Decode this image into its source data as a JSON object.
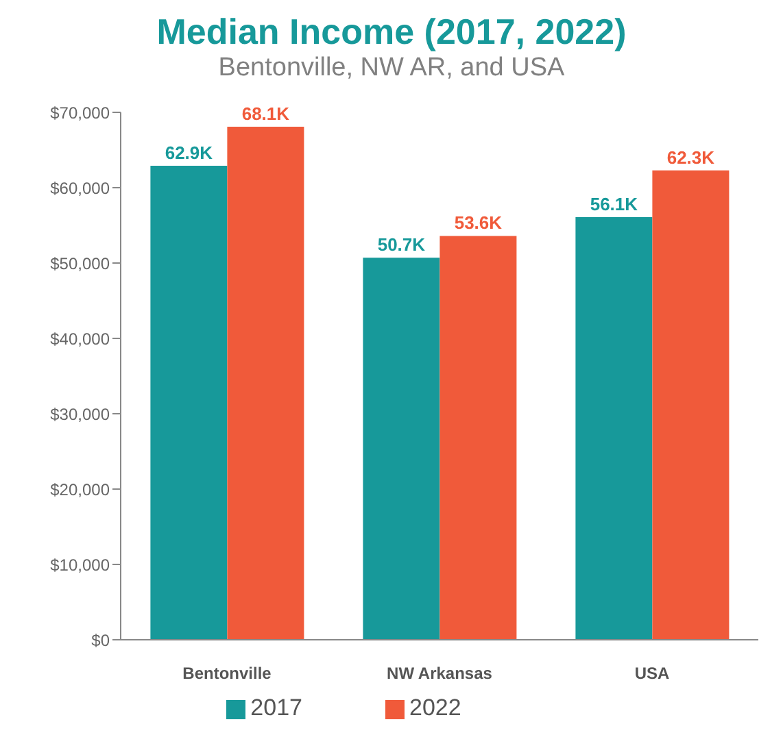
{
  "chart_data": {
    "type": "bar",
    "title": "Median Income (2017, 2022)",
    "subtitle": "Bentonville, NW AR, and USA",
    "categories": [
      "Bentonville",
      "NW Arkansas",
      "USA"
    ],
    "series": [
      {
        "name": "2017",
        "color": "#17999a",
        "values": [
          62900,
          50700,
          56100
        ],
        "value_labels": [
          "62.9K",
          "50.7K",
          "56.1K"
        ]
      },
      {
        "name": "2022",
        "color": "#f05a3a",
        "values": [
          68100,
          53600,
          62300
        ],
        "value_labels": [
          "68.1K",
          "53.6K",
          "62.3K"
        ]
      }
    ],
    "ylim": [
      0,
      70000
    ],
    "yticks": [
      {
        "value": 0,
        "label": "$0"
      },
      {
        "value": 10000,
        "label": "$10,000"
      },
      {
        "value": 20000,
        "label": "$20,000"
      },
      {
        "value": 30000,
        "label": "$30,000"
      },
      {
        "value": 40000,
        "label": "$40,000"
      },
      {
        "value": 50000,
        "label": "$50,000"
      },
      {
        "value": 60000,
        "label": "$60,000"
      },
      {
        "value": 70000,
        "label": "$70,000"
      }
    ],
    "grid": false,
    "legend": "bottom"
  }
}
